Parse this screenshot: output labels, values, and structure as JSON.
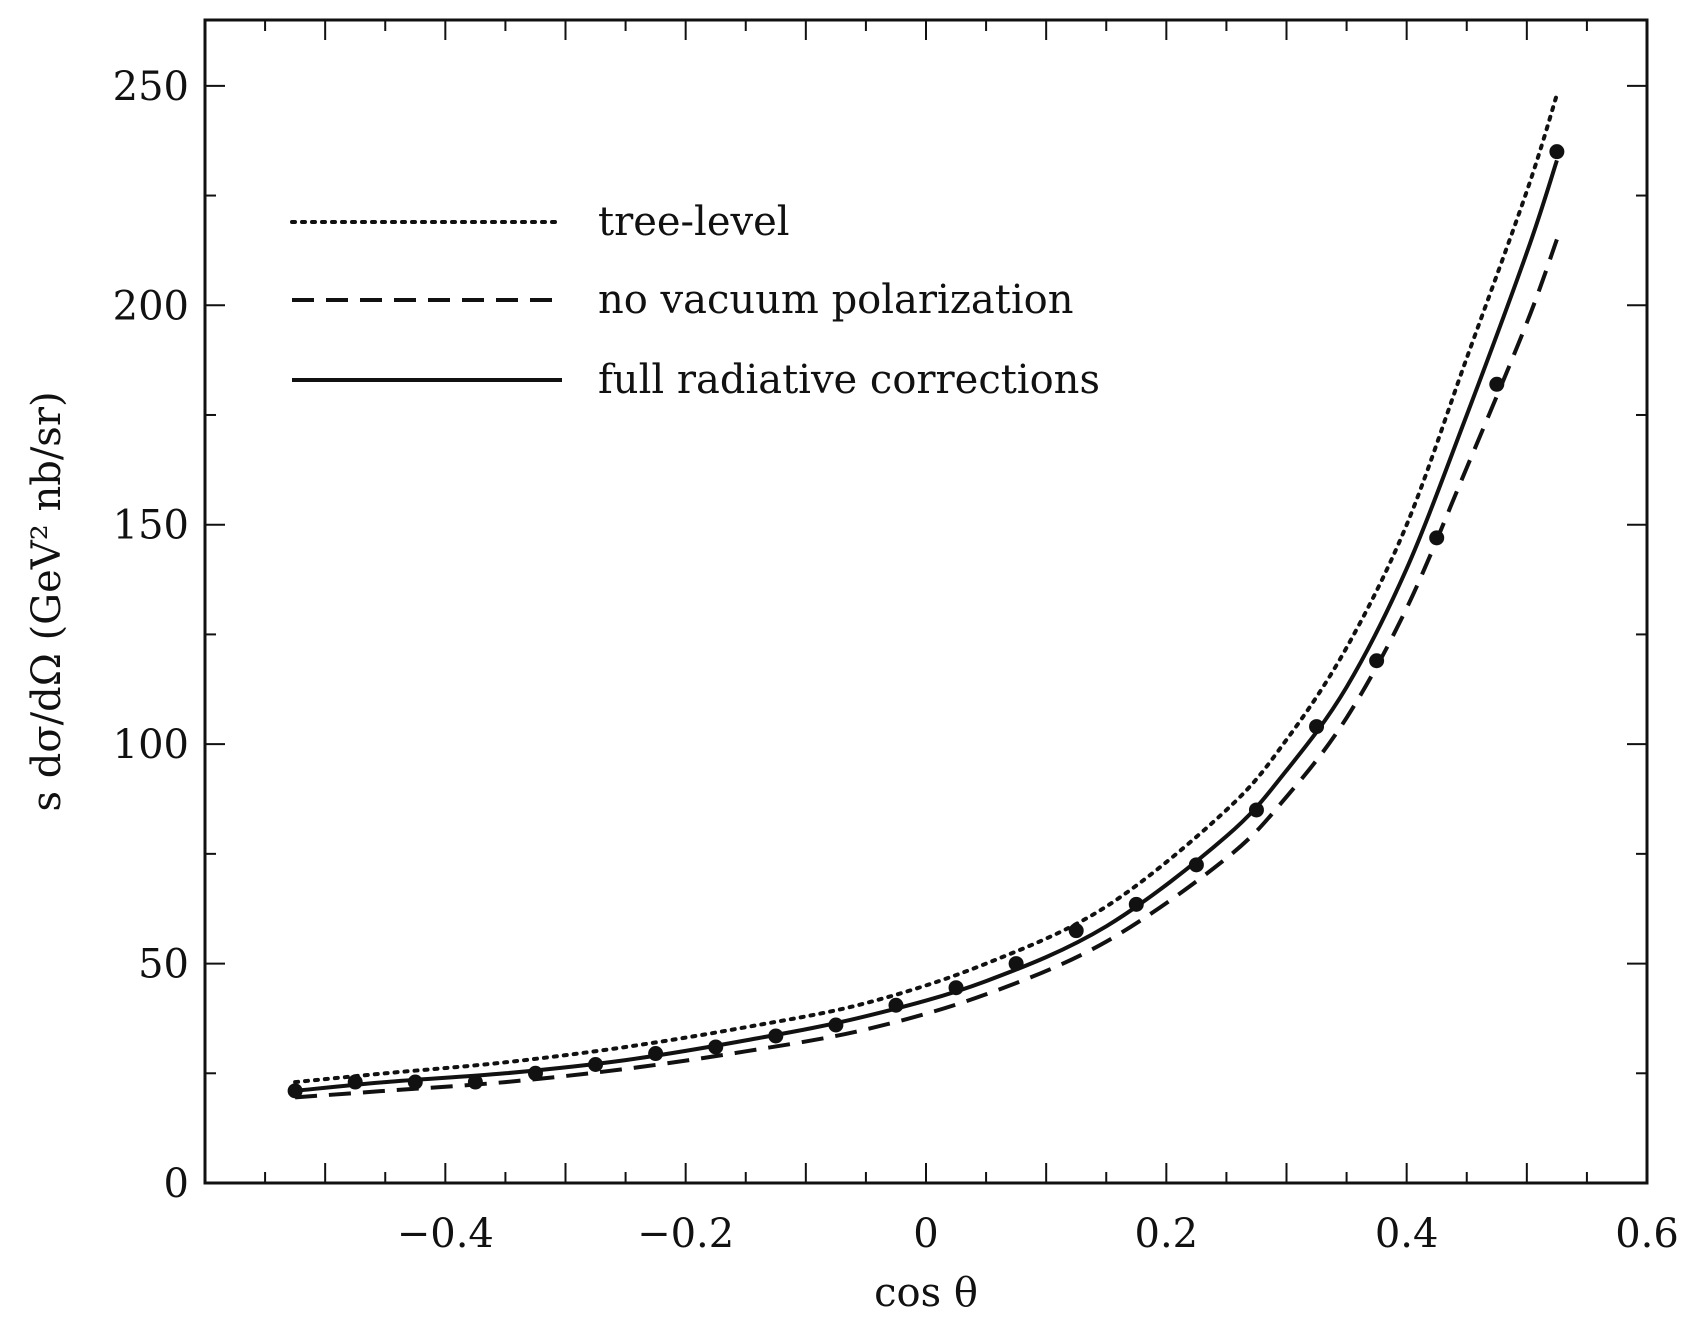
{
  "chart_data": {
    "type": "line",
    "title": "",
    "xlabel": "cos θ",
    "ylabel": "s dσ/dΩ (GeV² nb/sr)",
    "xlim": [
      -0.6,
      0.6
    ],
    "ylim": [
      0,
      265
    ],
    "xticks": [
      -0.4,
      -0.2,
      0,
      0.2,
      0.4,
      0.6
    ],
    "xtick_labels": [
      "−0.4",
      "−0.2",
      "0",
      "0.2",
      "0.4",
      "0.6"
    ],
    "yticks": [
      0,
      50,
      100,
      150,
      200,
      250
    ],
    "ytick_labels": [
      "0",
      "50",
      "100",
      "150",
      "200",
      "250"
    ],
    "legend_position": "top-left",
    "grid": false,
    "series": [
      {
        "name": "tree-level",
        "style": "dotted",
        "x": [
          -0.525,
          -0.45,
          -0.35,
          -0.25,
          -0.15,
          -0.05,
          0.05,
          0.15,
          0.25,
          0.3,
          0.35,
          0.4,
          0.45,
          0.5,
          0.525
        ],
        "y": [
          23,
          25,
          27.5,
          31,
          35.5,
          41,
          50,
          63,
          85,
          101,
          122,
          150,
          188,
          226,
          248
        ]
      },
      {
        "name": "no vacuum polarization",
        "style": "dashed",
        "x": [
          -0.525,
          -0.45,
          -0.35,
          -0.25,
          -0.15,
          -0.05,
          0.05,
          0.15,
          0.25,
          0.3,
          0.35,
          0.4,
          0.45,
          0.5,
          0.525
        ],
        "y": [
          19.5,
          21,
          23,
          26,
          30,
          35,
          43,
          55,
          74,
          88,
          106,
          131,
          163,
          196,
          215
        ]
      },
      {
        "name": "full radiative corrections",
        "style": "solid",
        "x": [
          -0.525,
          -0.45,
          -0.35,
          -0.25,
          -0.15,
          -0.05,
          0.05,
          0.15,
          0.25,
          0.3,
          0.35,
          0.4,
          0.45,
          0.5,
          0.525
        ],
        "y": [
          21,
          23,
          25,
          28,
          32.5,
          38,
          46,
          58.5,
          79,
          94,
          113,
          140,
          175,
          212,
          233
        ]
      },
      {
        "name": "",
        "style": "markers",
        "x": [
          -0.525,
          -0.475,
          -0.425,
          -0.375,
          -0.325,
          -0.275,
          -0.225,
          -0.175,
          -0.125,
          -0.075,
          -0.025,
          0.025,
          0.075,
          0.125,
          0.175,
          0.225,
          0.275,
          0.325,
          0.375,
          0.425,
          0.475,
          0.525
        ],
        "y": [
          21,
          23,
          23,
          23,
          25,
          27,
          29.5,
          31,
          33.5,
          36,
          40.5,
          44.5,
          50,
          57.5,
          63.5,
          72.5,
          85,
          104,
          119,
          147,
          182,
          235
        ]
      }
    ]
  }
}
